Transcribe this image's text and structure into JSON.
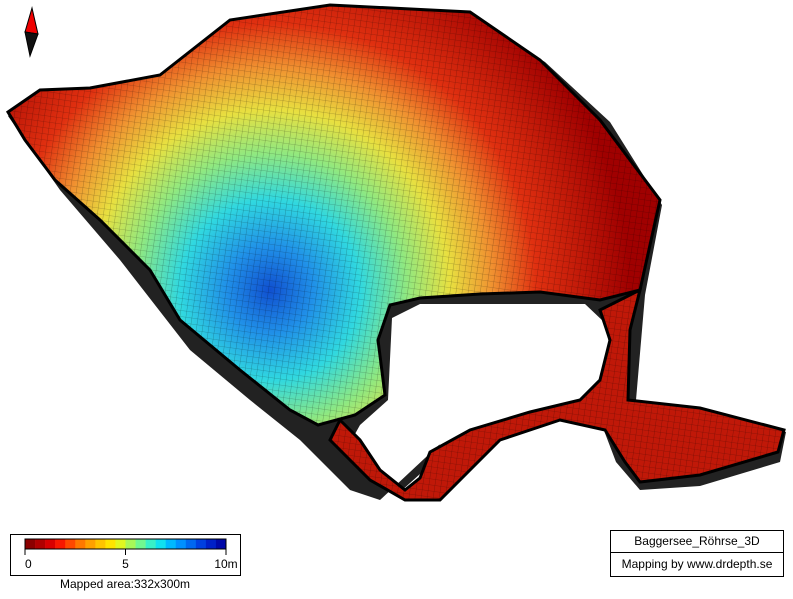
{
  "map": {
    "title": "Baggersee_Röhrse_3D",
    "credit": "Mapping by www.drdepth.se",
    "area": "Mapped area:332x300m",
    "scale": {
      "lim": [
        0,
        10
      ],
      "ticks": [
        0,
        5,
        {
          "value": 10,
          "label": "10m"
        }
      ],
      "colors": [
        "#8b0000",
        "#b00000",
        "#d80000",
        "#f81800",
        "#ff4800",
        "#ff7800",
        "#ffa000",
        "#ffc400",
        "#ffe400",
        "#e0f820",
        "#a8f858",
        "#70f890",
        "#38f0c8",
        "#10e0f0",
        "#00b8ff",
        "#0090ff",
        "#0068f0",
        "#0040e0",
        "#0020c8",
        "#0008a8"
      ]
    }
  }
}
